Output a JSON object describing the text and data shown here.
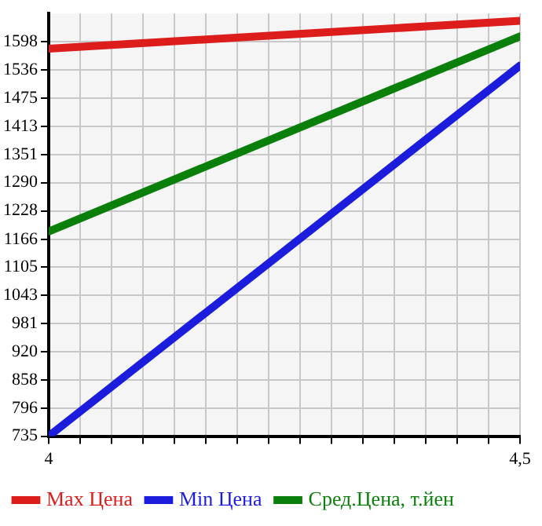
{
  "chart_data": {
    "type": "line",
    "x": [
      4,
      4.5
    ],
    "series": [
      {
        "name": "Max Цена",
        "color": "#dd1c1c",
        "values": [
          1583,
          1644
        ]
      },
      {
        "name": "Min Цена",
        "color": "#1c1cdd",
        "values": [
          735,
          1546
        ]
      },
      {
        "name": "Сред.Цена, т.йен",
        "color": "#0a800a",
        "values": [
          1183,
          1610
        ]
      }
    ],
    "xlim": [
      4,
      4.5
    ],
    "xticks": [
      4,
      {
        "value": 4.0333,
        "label": null
      },
      {
        "value": 4.0667,
        "label": null
      },
      {
        "value": 4.1,
        "label": null
      },
      {
        "value": 4.1333,
        "label": null
      },
      {
        "value": 4.1667,
        "label": null
      },
      {
        "value": 4.2,
        "label": null
      },
      {
        "value": 4.2333,
        "label": null
      },
      {
        "value": 4.2667,
        "label": null
      },
      {
        "value": 4.3,
        "label": null
      },
      {
        "value": 4.3333,
        "label": null
      },
      {
        "value": 4.3667,
        "label": null
      },
      {
        "value": 4.4,
        "label": null
      },
      {
        "value": 4.4333,
        "label": null
      },
      {
        "value": 4.4667,
        "label": null
      },
      {
        "value": 4.5,
        "label": "4,5"
      }
    ],
    "ylim": [
      735,
      1660
    ],
    "yticks": [
      735,
      796,
      858,
      920,
      981,
      1043,
      1105,
      1166,
      1228,
      1290,
      1351,
      1413,
      1475,
      1536,
      1598
    ],
    "grid": true,
    "legend": "bottom",
    "marker": "none",
    "line_style": "solid"
  }
}
